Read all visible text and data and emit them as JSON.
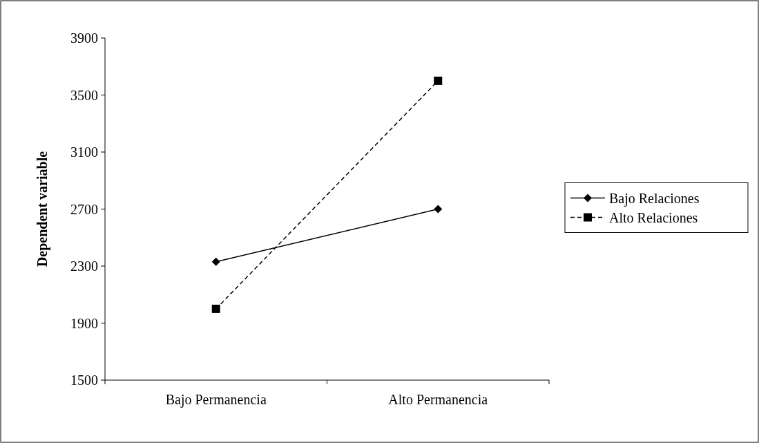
{
  "chart_data": {
    "type": "line",
    "ylabel": "Dependent variable",
    "categories": [
      "Bajo Permanencia",
      "Alto Permanencia"
    ],
    "series": [
      {
        "name": "Bajo Relaciones",
        "color": "#000000",
        "values": [
          2330,
          2700
        ],
        "marker": "diamond",
        "line_style": "solid"
      },
      {
        "name": "Alto Relaciones",
        "color": "#000000",
        "values": [
          2000,
          3600
        ],
        "marker": "square",
        "line_style": "dashed"
      }
    ],
    "ylim": [
      1500,
      3900
    ],
    "yticks": [
      1500,
      1900,
      2300,
      2700,
      3100,
      3500,
      3900
    ],
    "grid": false,
    "legend": "right"
  }
}
